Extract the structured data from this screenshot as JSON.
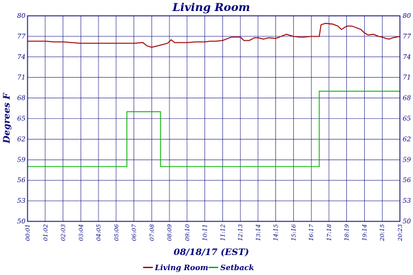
{
  "chart_data": {
    "type": "line",
    "title": "Living Room",
    "xlabel": "08/18/17 (EST)",
    "ylabel": "Degrees F",
    "ylim": [
      50,
      80
    ],
    "yticks": [
      "80",
      "77",
      "74",
      "71",
      "68",
      "65",
      "62",
      "59",
      "56",
      "53",
      "50"
    ],
    "xticks": [
      "00:01",
      "01:02",
      "02:03",
      "03:04",
      "04:05",
      "05:06",
      "06:07",
      "07:08",
      "08:09",
      "09:10",
      "10:11",
      "11:12",
      "12:13",
      "13:14",
      "14:15",
      "15:16",
      "16:17",
      "17:18",
      "18:19",
      "19:14",
      "20:15",
      "20:23"
    ],
    "grid": true,
    "legend_position": "bottom-center",
    "colors": {
      "frame": "#00007a",
      "grid": "#00007a",
      "living_room": "#a00000",
      "setback": "#00b000"
    },
    "series": [
      {
        "name": "Living Room",
        "points": [
          [
            0.0,
            76.3
          ],
          [
            0.5,
            76.3
          ],
          [
            1.0,
            76.3
          ],
          [
            1.5,
            76.2
          ],
          [
            2.0,
            76.2
          ],
          [
            2.5,
            76.1
          ],
          [
            3.0,
            76.0
          ],
          [
            3.5,
            76.0
          ],
          [
            4.0,
            76.0
          ],
          [
            4.5,
            76.0
          ],
          [
            5.0,
            76.0
          ],
          [
            5.5,
            76.0
          ],
          [
            6.0,
            76.0
          ],
          [
            6.5,
            76.1
          ],
          [
            6.75,
            75.6
          ],
          [
            7.0,
            75.4
          ],
          [
            7.3,
            75.6
          ],
          [
            7.6,
            75.8
          ],
          [
            7.9,
            76.0
          ],
          [
            8.1,
            76.5
          ],
          [
            8.3,
            76.1
          ],
          [
            8.6,
            76.1
          ],
          [
            9.0,
            76.1
          ],
          [
            9.5,
            76.2
          ],
          [
            10.0,
            76.2
          ],
          [
            10.3,
            76.3
          ],
          [
            10.6,
            76.3
          ],
          [
            11.0,
            76.4
          ],
          [
            11.5,
            76.9
          ],
          [
            12.0,
            76.9
          ],
          [
            12.2,
            76.4
          ],
          [
            12.5,
            76.4
          ],
          [
            12.8,
            76.8
          ],
          [
            13.0,
            76.8
          ],
          [
            13.3,
            76.6
          ],
          [
            13.6,
            76.8
          ],
          [
            14.0,
            76.7
          ],
          [
            14.3,
            77.0
          ],
          [
            14.6,
            77.3
          ],
          [
            15.0,
            77.0
          ],
          [
            15.3,
            76.9
          ],
          [
            15.6,
            76.9
          ],
          [
            16.0,
            77.0
          ],
          [
            16.3,
            77.0
          ],
          [
            16.45,
            77.0
          ],
          [
            16.55,
            78.7
          ],
          [
            16.8,
            78.9
          ],
          [
            17.2,
            78.8
          ],
          [
            17.5,
            78.5
          ],
          [
            17.7,
            78.0
          ],
          [
            18.0,
            78.5
          ],
          [
            18.3,
            78.5
          ],
          [
            18.6,
            78.2
          ],
          [
            18.8,
            78.0
          ],
          [
            19.0,
            77.5
          ],
          [
            19.2,
            77.2
          ],
          [
            19.5,
            77.3
          ],
          [
            19.8,
            77.0
          ],
          [
            20.0,
            76.9
          ],
          [
            20.2,
            76.7
          ],
          [
            20.4,
            76.6
          ],
          [
            20.6,
            76.8
          ],
          [
            20.8,
            76.9
          ],
          [
            21.0,
            77.0
          ]
        ]
      },
      {
        "name": "Setback",
        "points": [
          [
            0.0,
            58.0
          ],
          [
            5.6,
            58.0
          ],
          [
            5.6,
            66.0
          ],
          [
            7.5,
            66.0
          ],
          [
            7.5,
            58.0
          ],
          [
            16.45,
            58.0
          ],
          [
            16.45,
            69.0
          ],
          [
            21.0,
            69.0
          ]
        ]
      }
    ]
  }
}
